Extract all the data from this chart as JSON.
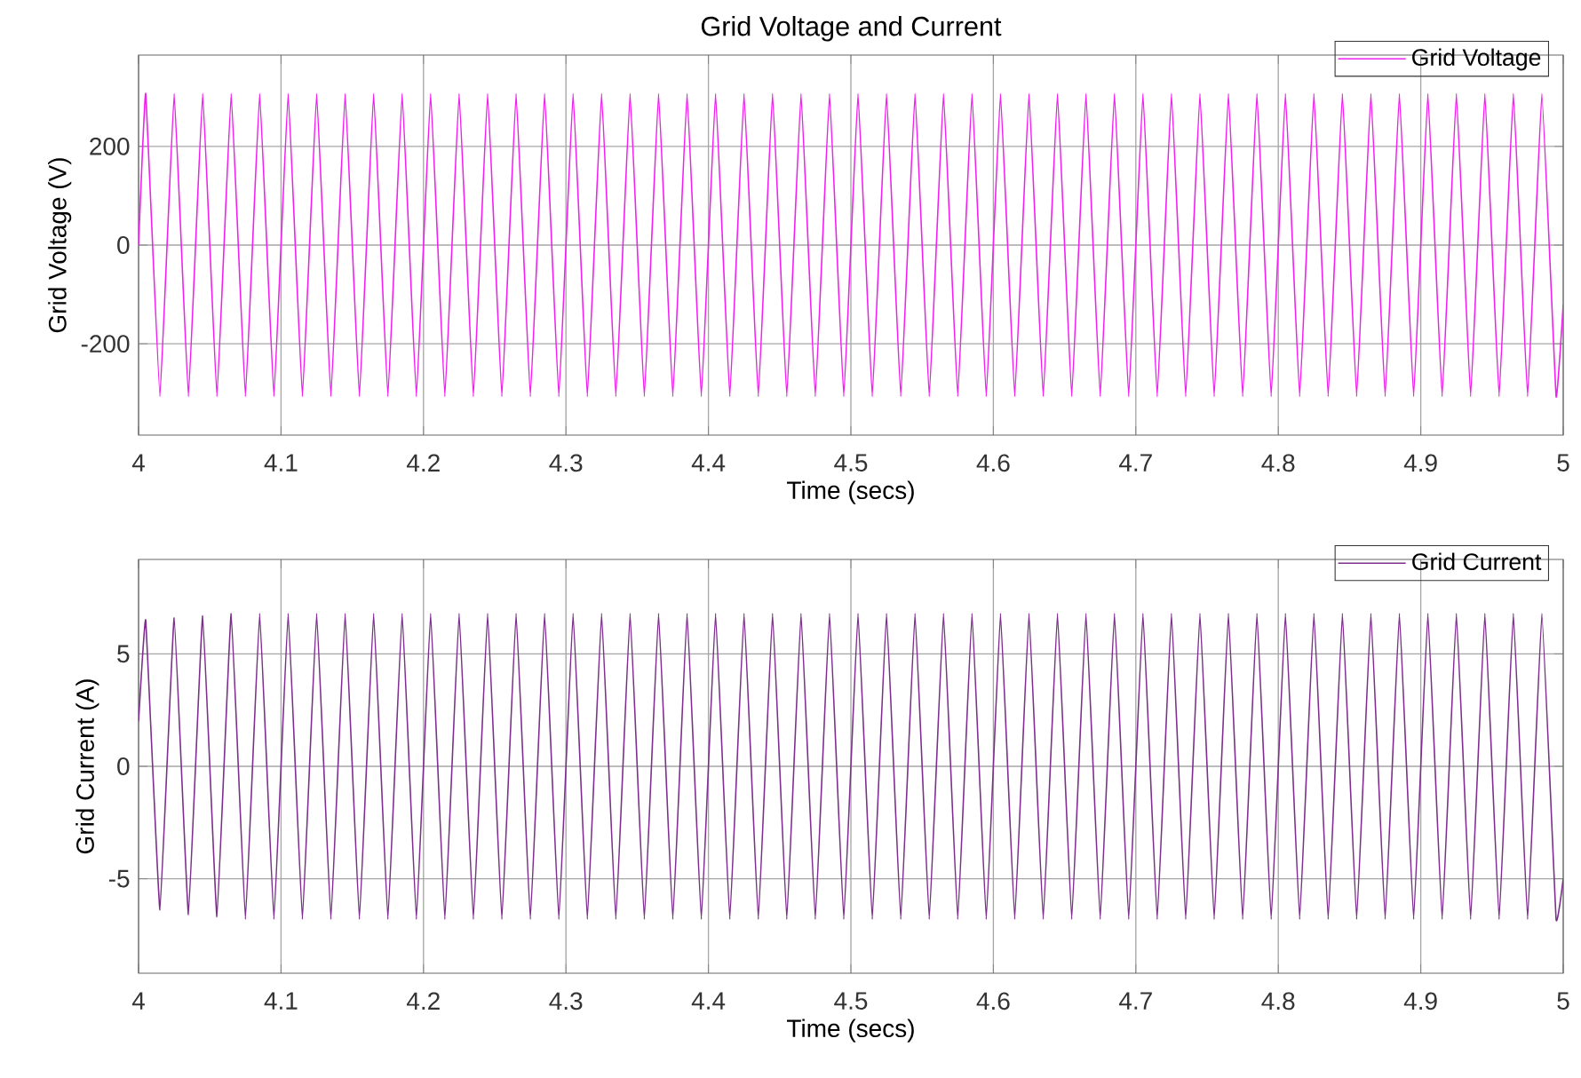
{
  "chart_data": [
    {
      "type": "line",
      "title": "Grid Voltage and Current",
      "xlabel": "Time (secs)",
      "ylabel": "Grid Voltage (V)",
      "xlim": [
        4,
        5
      ],
      "ylim": [
        -385,
        385
      ],
      "xticks": [
        4,
        4.1,
        4.2,
        4.3,
        4.4,
        4.5,
        4.6,
        4.7,
        4.8,
        4.9,
        5
      ],
      "yticks": [
        -200,
        0,
        200
      ],
      "grid": true,
      "legend": "top right",
      "x": [
        4,
        4.005,
        4.015,
        4.025,
        4.035,
        4.045,
        4.055,
        4.065,
        4.075,
        4.085,
        4.095,
        4.105,
        4.115,
        4.125,
        4.135,
        4.145,
        4.155,
        4.165,
        4.175,
        4.185,
        4.195,
        4.205,
        4.215,
        4.225,
        4.235,
        4.245,
        4.255,
        4.265,
        4.275,
        4.285,
        4.295,
        4.305,
        4.315,
        4.325,
        4.335,
        4.345,
        4.355,
        4.365,
        4.375,
        4.385,
        4.395,
        4.405,
        4.415,
        4.425,
        4.435,
        4.445,
        4.455,
        4.465,
        4.475,
        4.485,
        4.495,
        4.505,
        4.515,
        4.525,
        4.535,
        4.545,
        4.555,
        4.565,
        4.575,
        4.585,
        4.595,
        4.605,
        4.615,
        4.625,
        4.635,
        4.645,
        4.655,
        4.665,
        4.675,
        4.685,
        4.695,
        4.705,
        4.715,
        4.725,
        4.735,
        4.745,
        4.755,
        4.765,
        4.775,
        4.785,
        4.795,
        4.805,
        4.815,
        4.825,
        4.835,
        4.845,
        4.855,
        4.865,
        4.875,
        4.885,
        4.895,
        4.905,
        4.915,
        4.925,
        4.935,
        4.945,
        4.955,
        4.965,
        4.975,
        4.985,
        4.995,
        5
      ],
      "series": [
        {
          "name": "Grid Voltage",
          "color": "#f020f0",
          "values": [
            0,
            307,
            -307,
            307,
            -307,
            307,
            -307,
            307,
            -307,
            307,
            -307,
            307,
            -307,
            307,
            -307,
            307,
            -307,
            307,
            -307,
            307,
            -307,
            307,
            -307,
            307,
            -307,
            307,
            -307,
            307,
            -307,
            307,
            -307,
            307,
            -307,
            307,
            -307,
            307,
            -307,
            307,
            -307,
            307,
            -307,
            307,
            -307,
            307,
            -307,
            307,
            -307,
            307,
            -307,
            307,
            -307,
            307,
            -307,
            307,
            -307,
            307,
            -307,
            307,
            -307,
            307,
            -307,
            307,
            -307,
            307,
            -307,
            307,
            -307,
            307,
            -307,
            307,
            -307,
            307,
            -307,
            307,
            -307,
            307,
            -307,
            307,
            -307,
            307,
            -307,
            307,
            -307,
            307,
            -307,
            307,
            -307,
            307,
            -307,
            307,
            -307,
            307,
            -307,
            307,
            -307,
            307,
            -307,
            307,
            -307,
            307,
            -307,
            -120
          ]
        }
      ]
    },
    {
      "type": "line",
      "xlabel": "Time (secs)",
      "ylabel": "Grid Current (A)",
      "xlim": [
        4,
        5
      ],
      "ylim": [
        -9.2,
        9.2
      ],
      "xticks": [
        4,
        4.1,
        4.2,
        4.3,
        4.4,
        4.5,
        4.6,
        4.7,
        4.8,
        4.9,
        5
      ],
      "yticks": [
        -5,
        0,
        5
      ],
      "grid": true,
      "legend": "top right",
      "x": [
        4,
        4.005,
        4.015,
        4.025,
        4.035,
        4.045,
        4.055,
        4.065,
        4.075,
        4.085,
        4.095,
        4.105,
        4.115,
        4.125,
        4.135,
        4.145,
        4.155,
        4.165,
        4.175,
        4.185,
        4.195,
        4.205,
        4.215,
        4.225,
        4.235,
        4.245,
        4.255,
        4.265,
        4.275,
        4.285,
        4.295,
        4.305,
        4.315,
        4.325,
        4.335,
        4.345,
        4.355,
        4.365,
        4.375,
        4.385,
        4.395,
        4.405,
        4.415,
        4.425,
        4.435,
        4.445,
        4.455,
        4.465,
        4.475,
        4.485,
        4.495,
        4.505,
        4.515,
        4.525,
        4.535,
        4.545,
        4.555,
        4.565,
        4.575,
        4.585,
        4.595,
        4.605,
        4.615,
        4.625,
        4.635,
        4.645,
        4.655,
        4.665,
        4.675,
        4.685,
        4.695,
        4.705,
        4.715,
        4.725,
        4.735,
        4.745,
        4.755,
        4.765,
        4.775,
        4.785,
        4.795,
        4.805,
        4.815,
        4.825,
        4.835,
        4.845,
        4.855,
        4.865,
        4.875,
        4.885,
        4.895,
        4.905,
        4.915,
        4.925,
        4.935,
        4.945,
        4.955,
        4.965,
        4.975,
        4.985,
        4.995,
        5
      ],
      "series": [
        {
          "name": "Grid Current",
          "color": "#7e2f8e",
          "values": [
            2,
            6.5,
            -6.4,
            6.6,
            -6.6,
            6.7,
            -6.7,
            6.8,
            -6.8,
            6.8,
            -6.8,
            6.8,
            -6.8,
            6.8,
            -6.8,
            6.8,
            -6.8,
            6.8,
            -6.8,
            6.8,
            -6.8,
            6.8,
            -6.8,
            6.8,
            -6.8,
            6.8,
            -6.8,
            6.8,
            -6.8,
            6.8,
            -6.8,
            6.8,
            -6.8,
            6.8,
            -6.8,
            6.8,
            -6.8,
            6.8,
            -6.8,
            6.8,
            -6.8,
            6.8,
            -6.8,
            6.8,
            -6.8,
            6.8,
            -6.8,
            6.8,
            -6.8,
            6.8,
            -6.8,
            6.8,
            -6.8,
            6.8,
            -6.8,
            6.8,
            -6.8,
            6.8,
            -6.8,
            6.8,
            -6.8,
            6.8,
            -6.8,
            6.8,
            -6.8,
            6.8,
            -6.8,
            6.8,
            -6.8,
            6.8,
            -6.8,
            6.8,
            -6.8,
            6.8,
            -6.8,
            6.8,
            -6.8,
            6.8,
            -6.8,
            6.8,
            -6.8,
            6.8,
            -6.8,
            6.8,
            -6.8,
            6.8,
            -6.8,
            6.8,
            -6.8,
            6.8,
            -6.8,
            6.8,
            -6.8,
            6.8,
            -6.8,
            6.8,
            -6.8,
            6.8,
            -6.8,
            6.8,
            -6.8,
            -5
          ]
        }
      ]
    }
  ]
}
